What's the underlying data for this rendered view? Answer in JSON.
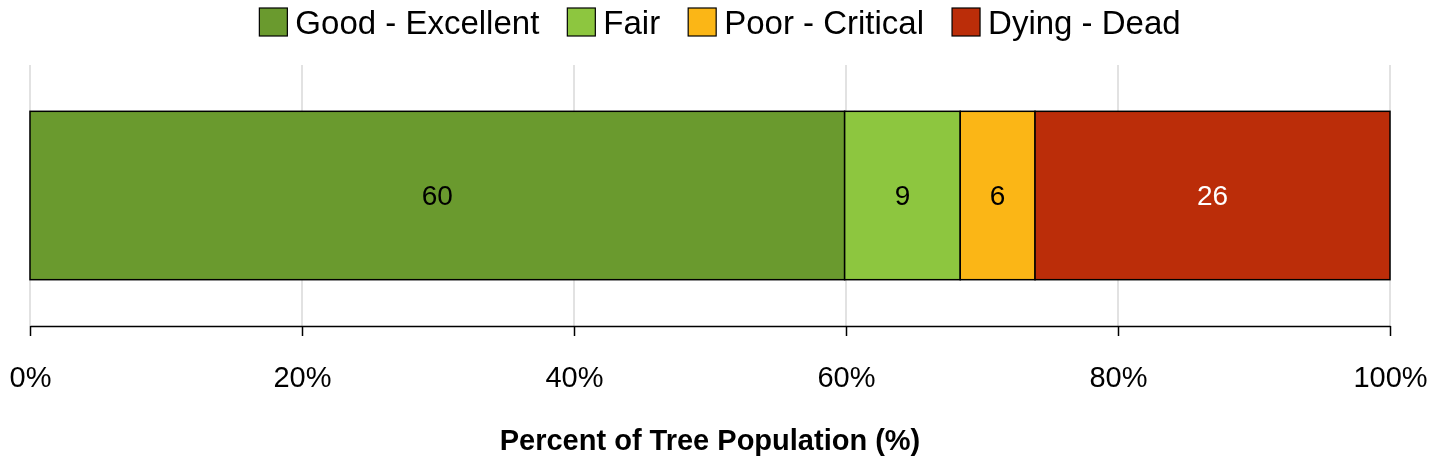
{
  "chart_data": {
    "type": "bar",
    "orientation": "horizontal",
    "stacked": true,
    "xlabel": "Percent of Tree Population (%)",
    "categories": [
      null
    ],
    "series": [
      {
        "name": "Good - Excellent",
        "color": "#6a9a2e",
        "values": [
          59.9
        ],
        "value_labels": [
          "60"
        ]
      },
      {
        "name": "Fair",
        "color": "#8dc63f",
        "values": [
          8.5
        ],
        "value_labels": [
          "9"
        ]
      },
      {
        "name": "Poor - Critical",
        "color": "#fbb616",
        "values": [
          5.5
        ],
        "value_labels": [
          "6"
        ]
      },
      {
        "name": "Dying - Dead",
        "color": "#bb2d09",
        "values": [
          26.1
        ],
        "value_labels": [
          "26"
        ]
      }
    ],
    "xlim": [
      0,
      100
    ],
    "xticks": [
      {
        "value": 0,
        "label": "0%"
      },
      {
        "value": 20,
        "label": "20%"
      },
      {
        "value": 40,
        "label": "40%"
      },
      {
        "value": 60,
        "label": "60%"
      },
      {
        "value": 80,
        "label": "80%"
      },
      {
        "value": 100,
        "label": "100%"
      }
    ],
    "grid": "x",
    "legend": "top"
  }
}
